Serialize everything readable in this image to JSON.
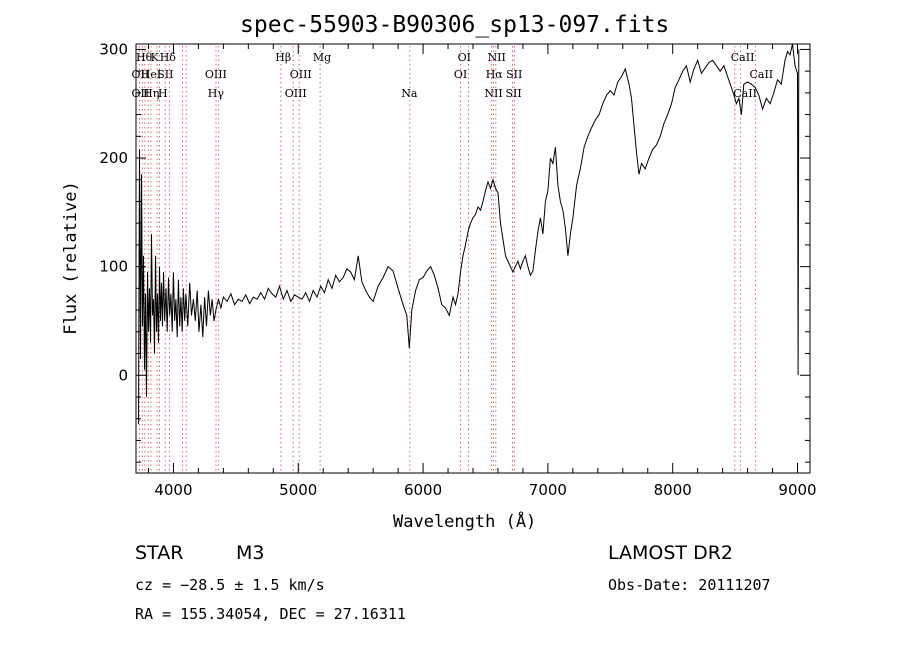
{
  "title": "spec-55903-B90306_sp13-097.fits",
  "object": {
    "class": "STAR",
    "subclass": "M3"
  },
  "survey": "LAMOST DR2",
  "redshift_text": "cz = −28.5 ± 1.5 km/s",
  "obs_date_text": "Obs-Date: 20111207",
  "coords_text": "RA = 155.34054, DEC =  27.16311",
  "chart_data": {
    "type": "line",
    "xlabel": "Wavelength (Å)",
    "ylabel": "Flux (relative)",
    "xlim": [
      3700,
      9100
    ],
    "ylim": [
      -90,
      305
    ],
    "xticks": [
      4000,
      5000,
      6000,
      7000,
      8000,
      9000
    ],
    "yticks": [
      0,
      100,
      200,
      300
    ],
    "grid": false,
    "line_color": "#000000",
    "marker_color": "#d04040",
    "series": [
      {
        "x": [
          3720,
          3728,
          3736,
          3744,
          3752,
          3760,
          3768,
          3776,
          3784,
          3792,
          3800,
          3808,
          3816,
          3824,
          3832,
          3840,
          3848,
          3856,
          3864,
          3872,
          3880,
          3888,
          3896,
          3904,
          3912,
          3920,
          3930,
          3940,
          3950,
          3960,
          3970,
          3980,
          3990,
          4000,
          4010,
          4020,
          4030,
          4040,
          4050,
          4060,
          4070,
          4080,
          4090,
          4100,
          4115,
          4130,
          4145,
          4160,
          4175,
          4190,
          4205,
          4220,
          4235,
          4250,
          4265,
          4280,
          4295,
          4310,
          4325,
          4340,
          4360,
          4380,
          4400,
          4430,
          4460,
          4490,
          4520,
          4550,
          4580,
          4610,
          4640,
          4670,
          4700,
          4730,
          4760,
          4790,
          4820,
          4850,
          4880,
          4910,
          4940,
          4970,
          5000,
          5030,
          5060,
          5090,
          5120,
          5150,
          5180,
          5210,
          5240,
          5270,
          5300,
          5330,
          5360,
          5390,
          5420,
          5450,
          5480,
          5510,
          5540,
          5570,
          5600,
          5640,
          5680,
          5720,
          5760,
          5800,
          5840,
          5870,
          5890,
          5910,
          5940,
          5970,
          6000,
          6030,
          6060,
          6090,
          6120,
          6150,
          6180,
          6210,
          6240,
          6260,
          6280,
          6300,
          6320,
          6340,
          6360,
          6380,
          6400,
          6420,
          6440,
          6460,
          6480,
          6500,
          6520,
          6540,
          6560,
          6580,
          6600,
          6620,
          6640,
          6660,
          6680,
          6700,
          6720,
          6740,
          6760,
          6780,
          6800,
          6820,
          6840,
          6860,
          6880,
          6900,
          6920,
          6940,
          6960,
          6980,
          7000,
          7020,
          7040,
          7060,
          7080,
          7100,
          7120,
          7140,
          7160,
          7180,
          7200,
          7230,
          7260,
          7290,
          7320,
          7350,
          7380,
          7410,
          7440,
          7470,
          7500,
          7530,
          7560,
          7590,
          7620,
          7650,
          7670,
          7690,
          7710,
          7730,
          7750,
          7780,
          7810,
          7840,
          7870,
          7900,
          7930,
          7960,
          7990,
          8020,
          8050,
          8080,
          8110,
          8140,
          8170,
          8200,
          8230,
          8260,
          8290,
          8320,
          8350,
          8380,
          8410,
          8440,
          8470,
          8490,
          8510,
          8530,
          8550,
          8570,
          8600,
          8630,
          8660,
          8690,
          8720,
          8750,
          8780,
          8810,
          8840,
          8870,
          8900,
          8920,
          8940,
          8960,
          8980,
          9000,
          9005,
          9010
        ],
        "y": [
          -45,
          208,
          15,
          185,
          45,
          110,
          5,
          75,
          -20,
          95,
          40,
          80,
          30,
          130,
          55,
          70,
          20,
          110,
          40,
          75,
          30,
          100,
          50,
          85,
          45,
          95,
          50,
          80,
          40,
          90,
          55,
          75,
          40,
          95,
          50,
          70,
          35,
          88,
          45,
          72,
          40,
          80,
          50,
          75,
          45,
          85,
          55,
          70,
          50,
          78,
          40,
          65,
          35,
          72,
          45,
          78,
          55,
          70,
          50,
          60,
          70,
          62,
          72,
          68,
          75,
          65,
          70,
          68,
          74,
          66,
          72,
          70,
          76,
          70,
          80,
          75,
          72,
          82,
          70,
          78,
          68,
          74,
          72,
          70,
          76,
          68,
          78,
          72,
          82,
          76,
          88,
          80,
          92,
          86,
          90,
          98,
          95,
          88,
          110,
          86,
          78,
          72,
          68,
          82,
          90,
          100,
          96,
          80,
          65,
          55,
          25,
          60,
          78,
          88,
          90,
          96,
          100,
          92,
          80,
          65,
          62,
          55,
          72,
          65,
          75,
          95,
          110,
          120,
          132,
          140,
          145,
          148,
          155,
          152,
          160,
          170,
          178,
          172,
          180,
          172,
          168,
          140,
          125,
          110,
          105,
          100,
          95,
          100,
          105,
          98,
          105,
          110,
          100,
          92,
          96,
          115,
          132,
          145,
          130,
          160,
          170,
          200,
          195,
          210,
          175,
          160,
          152,
          135,
          110,
          130,
          145,
          175,
          190,
          210,
          220,
          228,
          235,
          240,
          250,
          258,
          262,
          258,
          270,
          275,
          282,
          268,
          255,
          230,
          205,
          185,
          195,
          190,
          200,
          208,
          212,
          220,
          232,
          240,
          250,
          265,
          272,
          280,
          285,
          270,
          282,
          290,
          278,
          283,
          288,
          290,
          285,
          280,
          285,
          275,
          265,
          258,
          250,
          255,
          240,
          268,
          270,
          268,
          265,
          258,
          245,
          255,
          250,
          260,
          272,
          268,
          290,
          298,
          295,
          305,
          285,
          278,
          0,
          300
        ]
      }
    ],
    "line_markers": [
      {
        "x": 3727,
        "labels": [
          "OII",
          "OII"
        ]
      },
      {
        "x": 3750,
        "labels": [
          "Hθ"
        ]
      },
      {
        "x": 3771,
        "labels": [
          "OIII"
        ]
      },
      {
        "x": 3798,
        "labels": [
          "Hη"
        ]
      },
      {
        "x": 3820,
        "labels": [
          "HeI"
        ]
      },
      {
        "x": 3869,
        "labels": []
      },
      {
        "x": 3889,
        "labels": [
          "H"
        ]
      },
      {
        "x": 3934,
        "labels": [
          "K"
        ]
      },
      {
        "x": 3969,
        "labels": [
          "H"
        ]
      },
      {
        "x": 4072,
        "labels": [
          "SII"
        ]
      },
      {
        "x": 4102,
        "labels": [
          "Hδ"
        ]
      },
      {
        "x": 4341,
        "labels": [
          "Hγ"
        ]
      },
      {
        "x": 4363,
        "labels": [
          "OIII"
        ]
      },
      {
        "x": 4861,
        "labels": [
          "Hβ"
        ]
      },
      {
        "x": 4959,
        "labels": [
          "OIII"
        ]
      },
      {
        "x": 5007,
        "labels": [
          "OIII"
        ]
      },
      {
        "x": 5175,
        "labels": [
          "Mg"
        ]
      },
      {
        "x": 5894,
        "labels": [
          "Na"
        ]
      },
      {
        "x": 6300,
        "labels": [
          "OI"
        ]
      },
      {
        "x": 6363,
        "labels": [
          "OI"
        ]
      },
      {
        "x": 6548,
        "labels": [
          "NII",
          "NII"
        ]
      },
      {
        "x": 6563,
        "labels": [
          "Hα"
        ]
      },
      {
        "x": 6583,
        "labels": []
      },
      {
        "x": 6717,
        "labels": [
          "SII",
          "SII"
        ]
      },
      {
        "x": 6731,
        "labels": []
      },
      {
        "x": 8498,
        "labels": [
          "CaII",
          "CaII"
        ]
      },
      {
        "x": 8542,
        "labels": [
          "CaII"
        ]
      },
      {
        "x": 8662,
        "labels": []
      }
    ],
    "marker_label_rows": [
      {
        "x": 3765,
        "row": 0,
        "text": "Hθ"
      },
      {
        "x": 3850,
        "row": 0,
        "text": "K"
      },
      {
        "x": 3955,
        "row": 0,
        "text": "Hδ"
      },
      {
        "x": 3735,
        "row": 1,
        "text": "OII"
      },
      {
        "x": 3820,
        "row": 1,
        "text": "HeI"
      },
      {
        "x": 3935,
        "row": 1,
        "text": "SII"
      },
      {
        "x": 3735,
        "row": 2,
        "text": "OII"
      },
      {
        "x": 3822,
        "row": 2,
        "text": "Hη"
      },
      {
        "x": 3915,
        "row": 2,
        "text": "H"
      },
      {
        "x": 4880,
        "row": 0,
        "text": "Hβ"
      },
      {
        "x": 5190,
        "row": 0,
        "text": "Mg"
      },
      {
        "x": 4340,
        "row": 1,
        "text": "OIII"
      },
      {
        "x": 5020,
        "row": 1,
        "text": "OIII"
      },
      {
        "x": 4340,
        "row": 2,
        "text": "Hγ"
      },
      {
        "x": 4980,
        "row": 2,
        "text": "OIII"
      },
      {
        "x": 5890,
        "row": 2,
        "text": "Na"
      },
      {
        "x": 6330,
        "row": 0,
        "text": "OI"
      },
      {
        "x": 6590,
        "row": 0,
        "text": "NII"
      },
      {
        "x": 6300,
        "row": 1,
        "text": "OI"
      },
      {
        "x": 6570,
        "row": 1,
        "text": "Hα"
      },
      {
        "x": 6730,
        "row": 1,
        "text": "SII"
      },
      {
        "x": 6565,
        "row": 2,
        "text": "NII"
      },
      {
        "x": 6725,
        "row": 2,
        "text": "SII"
      },
      {
        "x": 8560,
        "row": 0,
        "text": "CaII"
      },
      {
        "x": 8710,
        "row": 1,
        "text": "CaII"
      },
      {
        "x": 8580,
        "row": 2,
        "text": "CaII"
      }
    ]
  }
}
